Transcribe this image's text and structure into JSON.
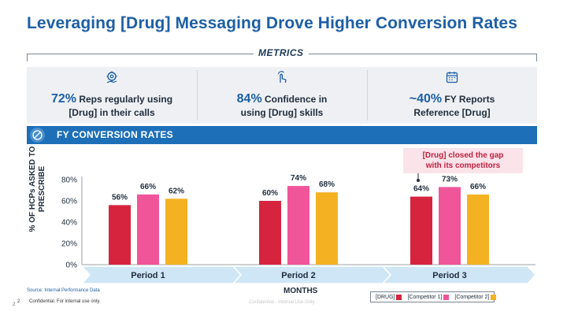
{
  "header": {
    "title": "Leveraging [Drug] Messaging Drove Higher Conversion Rates",
    "metrics_label": "METRICS"
  },
  "kpis": [
    {
      "big": "72%",
      "line1_rest": "Reps regularly using",
      "line2": "[Drug] in their calls",
      "icon": "gear-hand-icon"
    },
    {
      "big": "84%",
      "line1_rest": "Confidence in",
      "line2": "using [Drug] skills",
      "icon": "pointer-hand-icon"
    },
    {
      "big": "~40%",
      "line1_rest": "FY Reports",
      "line2": "Reference [Drug]",
      "icon": "calendar-icon"
    }
  ],
  "section": {
    "title": "FY CONVERSION RATES",
    "icon": "no-entry-icon"
  },
  "callout": {
    "line1": "[Drug] closed the gap",
    "line2": "with its competitors"
  },
  "chart_data": {
    "type": "bar",
    "categories": [
      "Period 1",
      "Period 2",
      "Period 3"
    ],
    "series": [
      {
        "name": "[DRUG]",
        "values": [
          56,
          60,
          64
        ],
        "color": "#d6243f"
      },
      {
        "name": "[Competitor 1]",
        "values": [
          66,
          74,
          73
        ],
        "color": "#f0559a"
      },
      {
        "name": "[Competitor 2]",
        "values": [
          62,
          68,
          66
        ],
        "color": "#f4b223"
      }
    ],
    "ylabel": "% OF HCPs ASKED TO PRESCRIBE",
    "xlabel": "MONTHS",
    "yticks": [
      "0%",
      "20%",
      "40%",
      "60%",
      "80%"
    ],
    "ylim": [
      0,
      80
    ],
    "value_suffix": "%",
    "grid": false,
    "legend_position": "bottom-right"
  },
  "footer": {
    "source": "Source: Internal Performance Data",
    "page": "2",
    "page_small": "2",
    "confidential": "Confidential. For internal use only.",
    "watermark": "Confidential - Internal Use Only"
  }
}
